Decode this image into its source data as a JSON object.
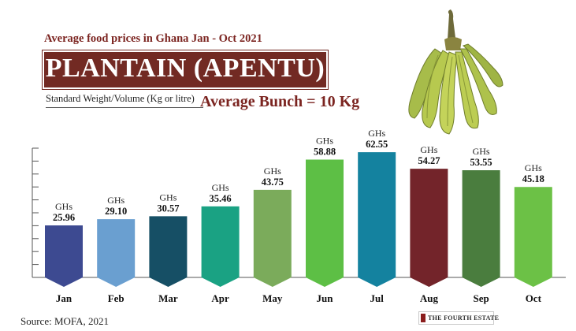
{
  "header": {
    "subtitle": "Average food prices in Ghana Jan - Oct 2021",
    "title": "PLANTAIN (APENTU)",
    "standard_label": "Standard Weight/Volume (Kg or litre)",
    "bunch_label": "Average Bunch = 10 Kg"
  },
  "footer": {
    "source": "Source: MOFA, 2021",
    "logo_text": "THE FOURTH ESTATE"
  },
  "image": {
    "icon": "plantain-bunch-icon"
  },
  "chart_data": {
    "type": "bar",
    "title": "PLANTAIN (APENTU)",
    "xlabel": "",
    "ylabel": "",
    "unit_prefix": "GHs",
    "categories": [
      "Jan",
      "Feb",
      "Mar",
      "Apr",
      "May",
      "Jun",
      "Jul",
      "Aug",
      "Sep",
      "Oct"
    ],
    "values": [
      25.96,
      29.1,
      30.57,
      35.46,
      43.75,
      58.88,
      62.55,
      54.27,
      53.55,
      45.18
    ],
    "value_labels": [
      "25.96",
      "29.10",
      "30.57",
      "35.46",
      "43.75",
      "58.88",
      "62.55",
      "54.27",
      "53.55",
      "45.18"
    ],
    "colors": [
      "#3d4a91",
      "#6a9fd0",
      "#164f65",
      "#1aa283",
      "#7bab5b",
      "#5dbf45",
      "#14829f",
      "#73242a",
      "#4a7d3e",
      "#6cc146"
    ],
    "ylim": [
      0,
      70
    ],
    "grid": false
  }
}
